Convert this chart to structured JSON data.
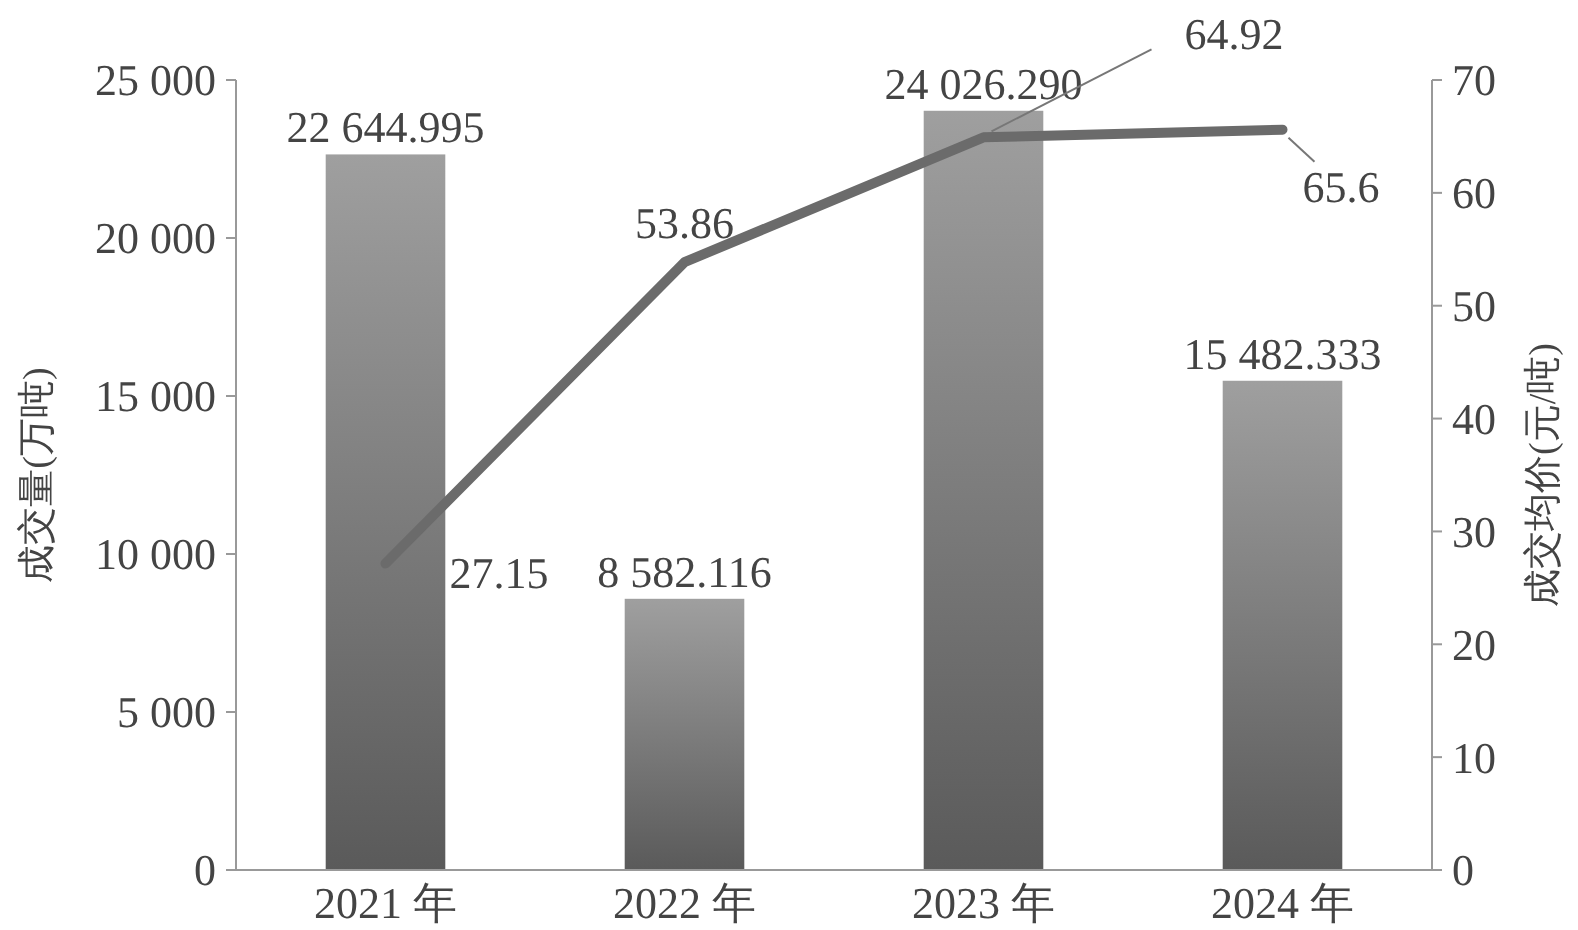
{
  "chart_data": {
    "type": "bar",
    "categories": [
      "2021 年",
      "2022 年",
      "2023 年",
      "2024 年"
    ],
    "ylabel": "成交量(万吨)",
    "y2label": "成交均价(元/吨)",
    "ylim": [
      0,
      25000
    ],
    "yticks": [
      0,
      {
        "value": 5000,
        "label": "5 000"
      },
      {
        "value": 10000,
        "label": "10 000"
      },
      {
        "value": 15000,
        "label": "15 000"
      },
      {
        "value": 20000,
        "label": "20 000"
      },
      {
        "value": 25000,
        "label": "25 000"
      }
    ],
    "y2lim": [
      0,
      70
    ],
    "y2ticks": [
      0,
      10,
      20,
      30,
      40,
      50,
      60,
      70
    ],
    "series": [
      {
        "color": "#8a8a8a",
        "values": [
          22644.995,
          8582.116,
          24026.29,
          15482.333
        ],
        "value_labels": [
          "22 644.995",
          "8 582.116",
          "24 026.290",
          "15 482.333"
        ]
      },
      {
        "type": "line",
        "axis": "y2",
        "color": "#6b6b6b",
        "values": [
          27.15,
          53.86,
          64.92,
          65.6
        ],
        "value_labels": [
          "27.15",
          "53.86",
          "64.92",
          "65.6"
        ]
      }
    ],
    "grid": false
  }
}
